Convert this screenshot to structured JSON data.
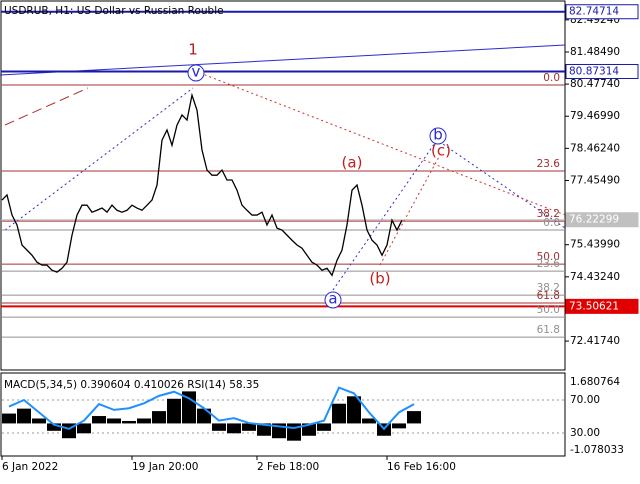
{
  "chart_data": [
    {
      "type": "line",
      "title": "USDRUB, H1:  US Dollar vs Russian Rouble",
      "color": "#000000",
      "categories": [
        "6 Jan 2022",
        null,
        null,
        null,
        null,
        null,
        null,
        null,
        null,
        null,
        null,
        null,
        null,
        null,
        null,
        null,
        null,
        null,
        null,
        null,
        null,
        null,
        null,
        null,
        null,
        null,
        "19 Jan 20:00",
        null,
        null,
        null,
        null,
        null,
        null,
        null,
        null,
        null,
        null,
        null,
        null,
        null,
        null,
        null,
        null,
        null,
        null,
        null,
        null,
        null,
        null,
        null,
        null,
        "2 Feb 18:00",
        null,
        null,
        null,
        null,
        null,
        null,
        null,
        null,
        null,
        null,
        null,
        null,
        null,
        null,
        null,
        null,
        null,
        null,
        null,
        null,
        null,
        null,
        null,
        null,
        null,
        "16 Feb 16:00",
        null,
        null,
        null
      ],
      "values": [
        76.84,
        77.0,
        76.37,
        76.06,
        75.43,
        75.27,
        75.11,
        74.89,
        74.8,
        74.8,
        74.64,
        74.58,
        74.7,
        74.89,
        75.74,
        76.37,
        76.68,
        76.68,
        76.46,
        76.52,
        76.59,
        76.46,
        76.68,
        76.52,
        76.46,
        76.52,
        76.68,
        76.59,
        76.52,
        76.68,
        76.84,
        77.31,
        78.72,
        79.04,
        78.56,
        79.19,
        79.51,
        79.35,
        80.13,
        79.66,
        78.41,
        77.78,
        77.62,
        77.62,
        77.78,
        77.47,
        77.47,
        77.15,
        76.68,
        76.52,
        76.37,
        76.37,
        76.46,
        76.06,
        76.37,
        75.96,
        75.9,
        75.74,
        75.58,
        75.43,
        75.33,
        75.11,
        74.89,
        74.8,
        74.64,
        74.7,
        74.48,
        74.95,
        75.27,
        76.06,
        77.15,
        77.31,
        76.68,
        75.9,
        75.58,
        75.43,
        75.11,
        75.43,
        76.21,
        75.9,
        76.21
      ],
      "ylim": [
        71.51,
        82.99
      ],
      "yticks": [
        {
          "value": 72.4174,
          "label": "72.41740"
        },
        {
          "value": 74.4324,
          "label": "74.43240"
        },
        {
          "value": 75.4399,
          "label": "75.43990"
        },
        {
          "value": 77.4549,
          "label": "77.45490"
        },
        {
          "value": 78.4624,
          "label": "78.46240"
        },
        {
          "value": 79.4699,
          "label": "79.46990"
        },
        {
          "value": 80.4774,
          "label": "80.47740"
        },
        {
          "value": 81.4849,
          "label": "81.48490"
        },
        {
          "value": 82.4924,
          "label": "82.49240"
        }
      ],
      "levels": [
        {
          "value": 82.74714,
          "color": "#1a1aa8"
        },
        {
          "value": 80.87314,
          "color": "#1a1aa8"
        },
        {
          "value": 76.22299,
          "color": "#c0c0c0"
        },
        {
          "value": 73.50621,
          "color": "#e00000"
        }
      ],
      "fib_levels": [
        {
          "label": "0.0",
          "value": 80.45,
          "color": "#a03030"
        },
        {
          "label": "23.6",
          "value": 77.75,
          "color": "#a03030"
        },
        {
          "label": "38.2",
          "value": 76.18,
          "color": "#a03030"
        },
        {
          "label": "0.0",
          "value": 75.9,
          "color": "#909090"
        },
        {
          "label": "50.0",
          "value": 74.83,
          "color": "#a03030"
        },
        {
          "label": "23.6",
          "value": 74.61,
          "color": "#909090"
        },
        {
          "label": "38.2",
          "value": 73.86,
          "color": "#909090"
        },
        {
          "label": "61.8",
          "value": 73.61,
          "color": "#a03030"
        },
        {
          "label": "50.0",
          "value": 73.17,
          "color": "#909090"
        },
        {
          "label": "61.8",
          "value": 72.54,
          "color": "#909090"
        }
      ],
      "annotations": [
        "1",
        "v",
        "(a)",
        "(b)",
        "(c)",
        "b",
        "a"
      ]
    },
    {
      "type": "indicator",
      "title": "MACD(5,34,5) 0.390604 0.410026 RSI(14) 58.35",
      "series": [
        {
          "color": "#000000",
          "axis": "y2",
          "values": [
            0.4,
            0.6,
            0.2,
            -0.3,
            -0.6,
            -0.4,
            0.3,
            0.2,
            0.1,
            0.2,
            0.5,
            1.0,
            1.3,
            0.6,
            -0.3,
            -0.4,
            -0.3,
            -0.5,
            -0.6,
            -0.7,
            -0.5,
            -0.3,
            0.8,
            1.1,
            0.2,
            -0.5,
            -0.2,
            0.5
          ]
        },
        {
          "color": "#1e90ff",
          "values": [
            62,
            70,
            55,
            40,
            35,
            45,
            65,
            58,
            60,
            66,
            75,
            80,
            72,
            60,
            45,
            48,
            42,
            40,
            38,
            36,
            40,
            45,
            85,
            78,
            55,
            35,
            55,
            65
          ]
        }
      ],
      "ylim": [
        3.3,
        101.5
      ],
      "yticks": [
        {
          "value": 70,
          "label": "70.00"
        },
        {
          "value": 30,
          "label": "30.00"
        }
      ],
      "y2lim": [
        -1.078033,
        1.680764
      ],
      "y2ticks": [
        1.680764,
        -1.078033
      ],
      "grid": true
    }
  ]
}
